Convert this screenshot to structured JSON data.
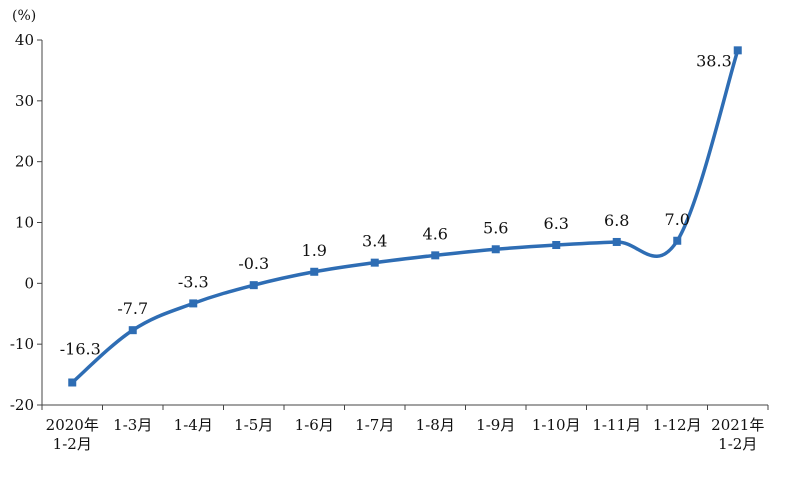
{
  "chart_data": {
    "type": "line",
    "unit_label": "(%)",
    "categories": [
      [
        "2020年",
        "1-2月"
      ],
      [
        "1-3月"
      ],
      [
        "1-4月"
      ],
      [
        "1-5月"
      ],
      [
        "1-6月"
      ],
      [
        "1-7月"
      ],
      [
        "1-8月"
      ],
      [
        "1-9月"
      ],
      [
        "1-10月"
      ],
      [
        "1-11月"
      ],
      [
        "1-12月"
      ],
      [
        "2021年",
        "1-2月"
      ]
    ],
    "values": [
      -16.3,
      -7.7,
      -3.3,
      -0.3,
      1.9,
      3.4,
      4.6,
      5.6,
      6.3,
      6.8,
      7.0,
      38.3
    ],
    "data_labels": [
      "-16.3",
      "-7.7",
      "-3.3",
      "-0.3",
      "1.9",
      "3.4",
      "4.6",
      "5.6",
      "6.3",
      "6.8",
      "7.0",
      "38.3"
    ],
    "ylim": [
      -20,
      40
    ],
    "yticks": [
      -20,
      -10,
      0,
      10,
      20,
      30,
      40
    ],
    "grid": false,
    "line_color": "#2e6db4",
    "axis_color": "#444444"
  }
}
